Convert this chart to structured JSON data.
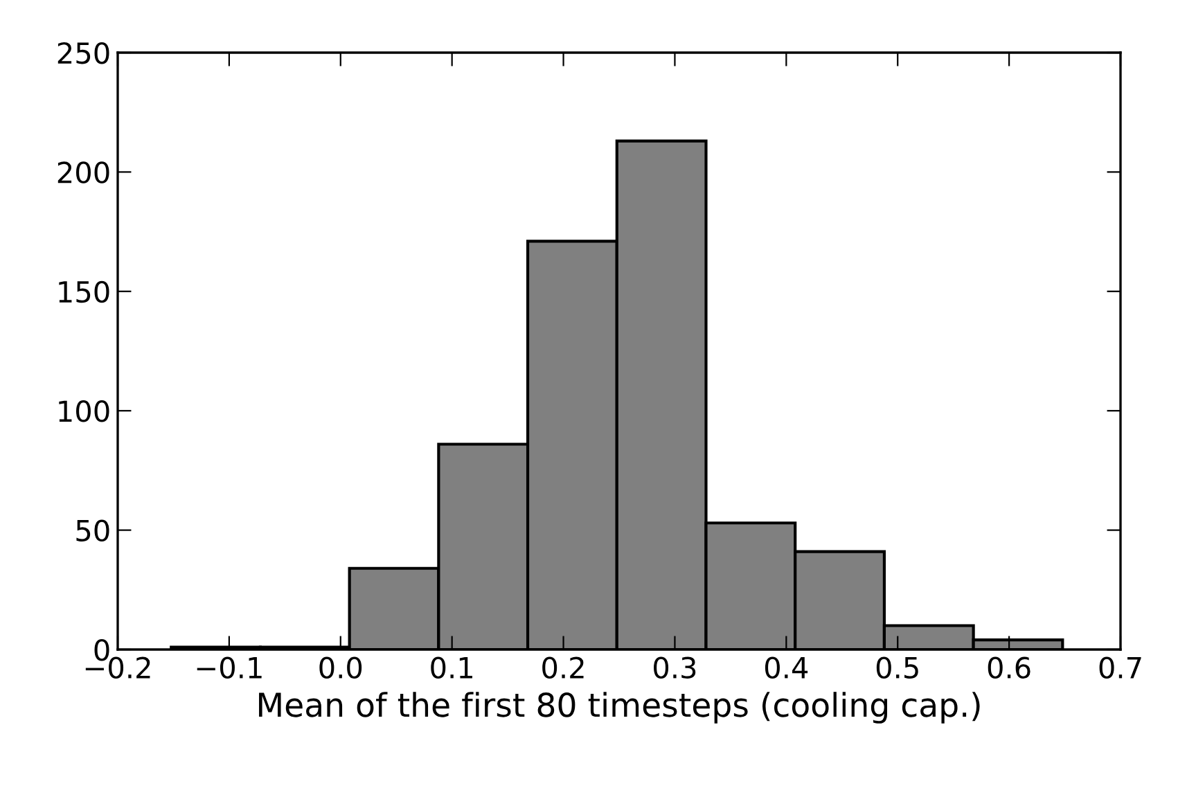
{
  "chart_data": {
    "type": "histogram",
    "xlabel": "Mean of the first 80 timesteps (cooling cap.)",
    "bins": [
      -0.152,
      -0.072,
      0.008,
      0.088,
      0.168,
      0.248,
      0.328,
      0.408,
      0.488,
      0.568,
      0.648
    ],
    "values": [
      1,
      1,
      34,
      86,
      171,
      213,
      53,
      41,
      10,
      4
    ],
    "color": "#808080",
    "xlim": [
      -0.2,
      0.7
    ],
    "xticks": [
      {
        "value": -0.2,
        "label": "−0.2"
      },
      {
        "value": -0.1,
        "label": "−0.1"
      },
      {
        "value": 0,
        "label": "0.0"
      },
      0.1,
      0.2,
      0.3,
      0.4,
      0.5,
      0.6,
      0.7
    ],
    "ylim": [
      0,
      250
    ],
    "yticks": [
      0,
      50,
      100,
      150,
      200,
      250
    ],
    "grid": false
  }
}
